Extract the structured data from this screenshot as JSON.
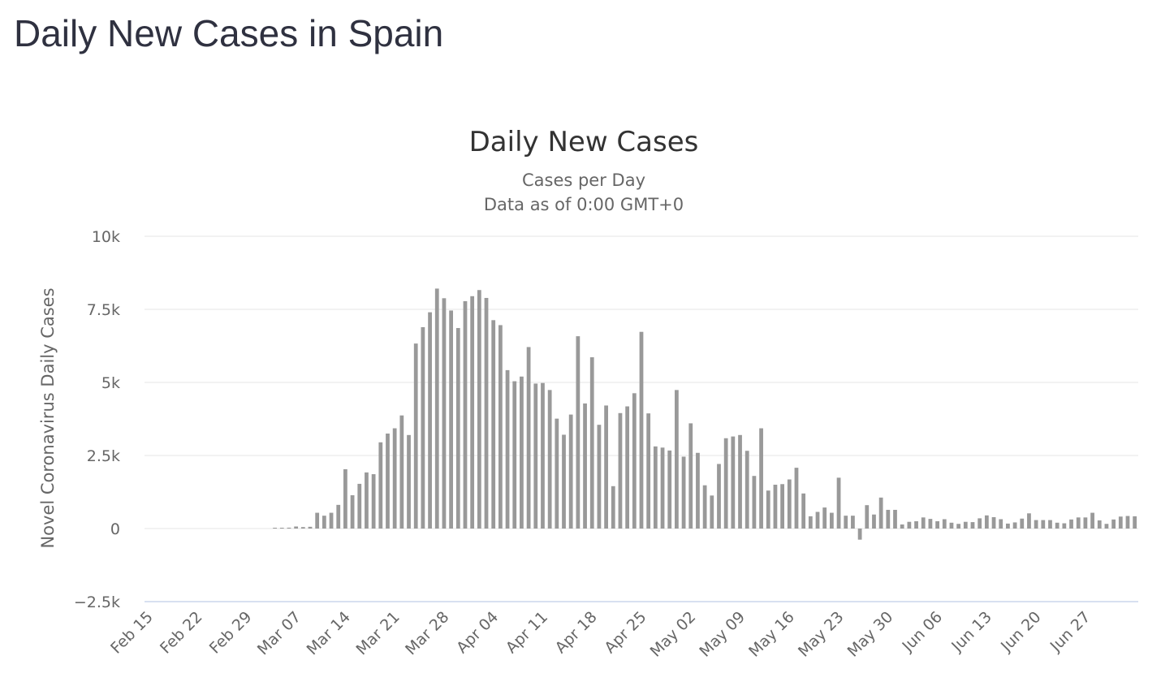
{
  "page": {
    "heading": "Daily New Cases in Spain"
  },
  "chart_data": {
    "type": "bar",
    "title": "Daily New Cases",
    "subtitle_lines": [
      "Cases per Day",
      "Data as of 0:00 GMT+0"
    ],
    "ylabel": "Novel Coronavirus Daily Cases",
    "xlabel": "",
    "ylim": [
      -2500,
      10000
    ],
    "y_ticks": [
      {
        "value": -2500,
        "label": "−2.5k"
      },
      {
        "value": 0,
        "label": "0"
      },
      {
        "value": 2500,
        "label": "2.5k"
      },
      {
        "value": 5000,
        "label": "5k"
      },
      {
        "value": 7500,
        "label": "7.5k"
      },
      {
        "value": 10000,
        "label": "10k"
      }
    ],
    "x_start": "Feb 15",
    "x_ticks": [
      "Feb 15",
      "Feb 22",
      "Feb 29",
      "Mar 07",
      "Mar 14",
      "Mar 21",
      "Mar 28",
      "Apr 04",
      "Apr 11",
      "Apr 18",
      "Apr 25",
      "May 02",
      "May 09",
      "May 16",
      "May 23",
      "May 30",
      "Jun 06",
      "Jun 13",
      "Jun 20",
      "Jun 27"
    ],
    "grid": true,
    "legend": "none",
    "bar_color": "#999999",
    "values": [
      0,
      0,
      0,
      0,
      0,
      0,
      0,
      0,
      0,
      0,
      0,
      0,
      0,
      0,
      0,
      0,
      0,
      0,
      25,
      13,
      30,
      70,
      50,
      60,
      540,
      440,
      540,
      810,
      2030,
      1140,
      1530,
      1920,
      1860,
      2950,
      3250,
      3430,
      3870,
      3200,
      6330,
      6890,
      7400,
      8210,
      7880,
      7460,
      6860,
      7780,
      7950,
      8160,
      7890,
      7130,
      6960,
      5420,
      5040,
      5200,
      6210,
      4960,
      4980,
      4740,
      3760,
      3210,
      3900,
      6580,
      4280,
      5860,
      3550,
      4210,
      1450,
      3950,
      4180,
      4630,
      6730,
      3940,
      2810,
      2770,
      2670,
      4740,
      2460,
      3600,
      2590,
      1480,
      1130,
      2210,
      3090,
      3150,
      3200,
      2660,
      1800,
      3430,
      1300,
      1500,
      1520,
      1680,
      2080,
      1200,
      420,
      570,
      720,
      540,
      1740,
      440,
      440,
      -380,
      800,
      480,
      1060,
      640,
      640,
      140,
      230,
      250,
      380,
      330,
      250,
      320,
      200,
      160,
      230,
      220,
      350,
      450,
      390,
      320,
      170,
      210,
      340,
      520,
      290,
      290,
      290,
      200,
      180,
      310,
      380,
      380,
      540,
      280,
      160,
      310,
      410,
      430,
      420
    ]
  }
}
